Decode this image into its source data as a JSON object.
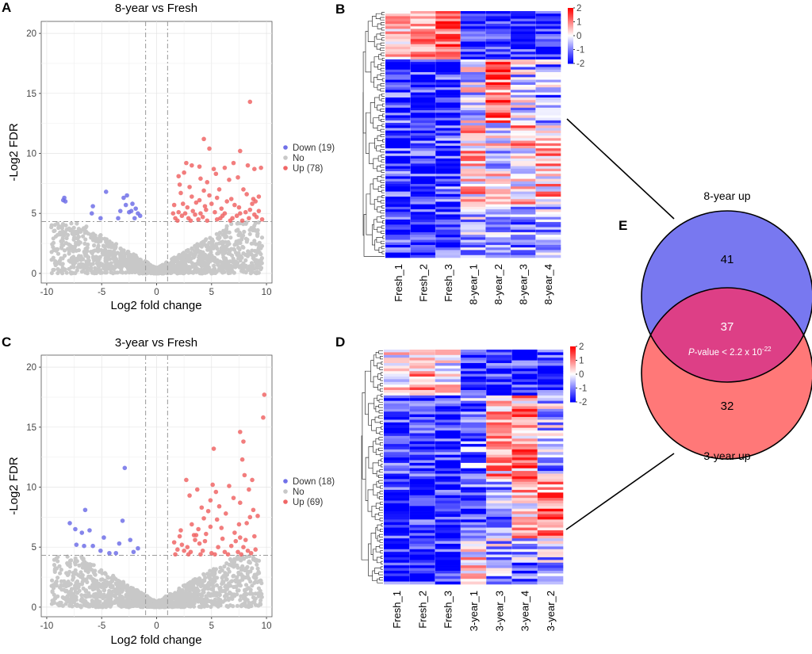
{
  "panel_letters": {
    "a": "A",
    "b": "B",
    "c": "C",
    "d": "D",
    "e": "E"
  },
  "chart_data": [
    {
      "panel": "A",
      "type": "scatter",
      "title": "8-year vs Fresh",
      "xlabel": "Log2 fold change",
      "ylabel": "-Log2 FDR",
      "xlim": [
        -10.5,
        10.5
      ],
      "ylim": [
        -0.8,
        21
      ],
      "xticks": [
        -10,
        -5,
        0,
        5,
        10
      ],
      "yticks": [
        0,
        5,
        10,
        15,
        20
      ],
      "grid": true,
      "fc_cutoff": [
        -1,
        1
      ],
      "fdr_cutoff": 4.32,
      "legend_position": "right",
      "legend": [
        {
          "label": "Down (19)",
          "color": "#7070e8"
        },
        {
          "label": "No",
          "color": "#c8c8c8"
        },
        {
          "label": "Up (78)",
          "color": "#f06666"
        }
      ],
      "series": [
        {
          "name": "Down",
          "color": "#7070e8",
          "points": [
            [
              -8.4,
              6.3
            ],
            [
              -8.5,
              6.1
            ],
            [
              -8.3,
              6.0
            ],
            [
              -4.6,
              6.8
            ],
            [
              -5.8,
              5.6
            ],
            [
              -5.9,
              5.0
            ],
            [
              -3.0,
              6.3
            ],
            [
              -2.7,
              6.5
            ],
            [
              -2.5,
              5.1
            ],
            [
              -2.3,
              5.2
            ],
            [
              -3.3,
              5.2
            ],
            [
              -2.2,
              5.8
            ],
            [
              -1.7,
              5.0
            ],
            [
              -3.5,
              4.6
            ],
            [
              -2.0,
              4.6
            ],
            [
              -1.5,
              4.8
            ],
            [
              -5.1,
              4.6
            ],
            [
              -2.8,
              5.7
            ],
            [
              -1.9,
              5.4
            ]
          ]
        },
        {
          "name": "Up",
          "color": "#f06666",
          "points": [
            [
              8.5,
              14.3
            ],
            [
              4.3,
              11.2
            ],
            [
              4.8,
              10.4
            ],
            [
              7.6,
              10.2
            ],
            [
              2.7,
              9.2
            ],
            [
              3.2,
              9.0
            ],
            [
              3.9,
              8.9
            ],
            [
              5.2,
              8.7
            ],
            [
              6.2,
              8.8
            ],
            [
              7.0,
              9.2
            ],
            [
              8.9,
              8.7
            ],
            [
              9.5,
              8.8
            ],
            [
              2.0,
              8.1
            ],
            [
              2.5,
              8.4
            ],
            [
              4.0,
              7.9
            ],
            [
              5.4,
              8.3
            ],
            [
              7.4,
              8.0
            ],
            [
              8.3,
              9.0
            ],
            [
              3.0,
              7.2
            ],
            [
              4.3,
              6.9
            ],
            [
              5.7,
              7.0
            ],
            [
              6.6,
              7.8
            ],
            [
              7.9,
              7.0
            ],
            [
              2.2,
              6.7
            ],
            [
              3.2,
              6.4
            ],
            [
              4.8,
              6.5
            ],
            [
              8.2,
              6.6
            ],
            [
              9.3,
              6.4
            ],
            [
              2.4,
              5.8
            ],
            [
              3.6,
              5.9
            ],
            [
              5.0,
              5.8
            ],
            [
              6.4,
              6.0
            ],
            [
              7.1,
              5.7
            ],
            [
              8.7,
              5.8
            ],
            [
              9.0,
              6.0
            ],
            [
              1.5,
              5.0
            ],
            [
              2.0,
              5.1
            ],
            [
              2.6,
              5.0
            ],
            [
              3.3,
              5.2
            ],
            [
              4.0,
              5.0
            ],
            [
              4.5,
              5.3
            ],
            [
              5.3,
              5.1
            ],
            [
              6.2,
              5.0
            ],
            [
              7.6,
              5.0
            ],
            [
              8.1,
              5.1
            ],
            [
              9.3,
              5.2
            ],
            [
              1.7,
              4.6
            ],
            [
              2.9,
              4.6
            ],
            [
              3.8,
              4.5
            ],
            [
              5.8,
              4.6
            ],
            [
              6.9,
              4.6
            ],
            [
              8.4,
              4.6
            ],
            [
              9.1,
              4.7
            ],
            [
              1.9,
              4.4
            ],
            [
              3.1,
              4.4
            ],
            [
              4.6,
              4.4
            ],
            [
              5.5,
              4.5
            ],
            [
              6.7,
              4.4
            ],
            [
              7.8,
              4.4
            ],
            [
              9.6,
              4.5
            ],
            [
              2.3,
              4.8
            ],
            [
              3.5,
              4.9
            ],
            [
              4.2,
              4.7
            ],
            [
              6.0,
              4.8
            ],
            [
              7.3,
              4.8
            ],
            [
              8.9,
              4.9
            ],
            [
              2.8,
              5.5
            ],
            [
              4.4,
              5.6
            ],
            [
              5.9,
              5.4
            ],
            [
              7.5,
              5.5
            ],
            [
              8.5,
              5.3
            ],
            [
              1.6,
              5.7
            ],
            [
              3.9,
              6.1
            ],
            [
              5.5,
              6.3
            ],
            [
              6.8,
              6.2
            ],
            [
              8.8,
              6.2
            ],
            [
              2.1,
              7.4
            ],
            [
              4.6,
              7.6
            ]
          ]
        }
      ]
    },
    {
      "panel": "C",
      "type": "scatter",
      "title": "3-year vs Fresh",
      "xlabel": "Log2 fold change",
      "ylabel": "-Log2 FDR",
      "xlim": [
        -10.5,
        10.5
      ],
      "ylim": [
        -0.8,
        21
      ],
      "xticks": [
        -10,
        -5,
        0,
        5,
        10
      ],
      "yticks": [
        0,
        5,
        10,
        15,
        20
      ],
      "grid": true,
      "fc_cutoff": [
        -1,
        1
      ],
      "fdr_cutoff": 4.32,
      "legend_position": "right",
      "legend": [
        {
          "label": "Down (18)",
          "color": "#7070e8"
        },
        {
          "label": "No",
          "color": "#c8c8c8"
        },
        {
          "label": "Up (69)",
          "color": "#f06666"
        }
      ],
      "series": [
        {
          "name": "Down",
          "color": "#7070e8",
          "points": [
            [
              -2.9,
              11.6
            ],
            [
              -6.5,
              8.1
            ],
            [
              -7.9,
              7.0
            ],
            [
              -7.4,
              6.5
            ],
            [
              -7.3,
              5.2
            ],
            [
              -6.8,
              6.2
            ],
            [
              -6.1,
              6.4
            ],
            [
              -5.8,
              5.1
            ],
            [
              -6.6,
              5.1
            ],
            [
              -5.1,
              4.7
            ],
            [
              -4.3,
              4.5
            ],
            [
              -3.7,
              4.5
            ],
            [
              -3.1,
              7.2
            ],
            [
              -2.4,
              5.6
            ],
            [
              -1.7,
              4.9
            ],
            [
              -2.1,
              4.6
            ],
            [
              -4.8,
              5.8
            ],
            [
              -3.4,
              5.3
            ]
          ]
        },
        {
          "name": "Up",
          "color": "#f06666",
          "points": [
            [
              9.8,
              17.7
            ],
            [
              9.7,
              15.8
            ],
            [
              7.6,
              14.6
            ],
            [
              7.9,
              13.8
            ],
            [
              5.2,
              13.2
            ],
            [
              7.8,
              12.3
            ],
            [
              2.7,
              10.6
            ],
            [
              8.7,
              10.6
            ],
            [
              5.1,
              10.2
            ],
            [
              8.4,
              9.8
            ],
            [
              3.0,
              9.3
            ],
            [
              4.9,
              8.9
            ],
            [
              5.7,
              8.4
            ],
            [
              7.6,
              8.7
            ],
            [
              4.7,
              8.0
            ],
            [
              8.8,
              8.1
            ],
            [
              4.3,
              7.4
            ],
            [
              5.5,
              7.3
            ],
            [
              8.5,
              7.5
            ],
            [
              9.2,
              7.6
            ],
            [
              3.2,
              6.9
            ],
            [
              4.9,
              6.7
            ],
            [
              7.1,
              6.2
            ],
            [
              2.1,
              5.9
            ],
            [
              3.4,
              6.0
            ],
            [
              3.6,
              6.0
            ],
            [
              4.5,
              6.1
            ],
            [
              7.6,
              5.8
            ],
            [
              8.1,
              5.6
            ],
            [
              2.3,
              5.2
            ],
            [
              2.8,
              5.0
            ],
            [
              3.9,
              5.3
            ],
            [
              5.6,
              5.0
            ],
            [
              6.8,
              5.1
            ],
            [
              7.9,
              5.0
            ],
            [
              1.6,
              5.4
            ],
            [
              1.9,
              4.8
            ],
            [
              2.5,
              4.7
            ],
            [
              3.1,
              4.6
            ],
            [
              4.2,
              4.7
            ],
            [
              5.0,
              4.5
            ],
            [
              6.2,
              4.6
            ],
            [
              7.4,
              4.6
            ],
            [
              8.3,
              4.7
            ],
            [
              9.0,
              4.8
            ],
            [
              1.7,
              4.4
            ],
            [
              2.9,
              4.4
            ],
            [
              4.0,
              4.4
            ],
            [
              5.3,
              4.4
            ],
            [
              6.5,
              4.4
            ],
            [
              7.7,
              4.4
            ],
            [
              8.6,
              4.5
            ],
            [
              3.5,
              5.6
            ],
            [
              4.4,
              5.5
            ],
            [
              6.0,
              5.7
            ],
            [
              7.2,
              5.5
            ],
            [
              8.9,
              5.9
            ],
            [
              2.2,
              6.4
            ],
            [
              3.8,
              6.5
            ],
            [
              5.9,
              6.6
            ],
            [
              7.5,
              6.9
            ],
            [
              8.2,
              7.0
            ],
            [
              4.1,
              8.3
            ],
            [
              6.3,
              7.8
            ],
            [
              7.0,
              9.1
            ],
            [
              5.4,
              9.6
            ],
            [
              3.7,
              9.8
            ],
            [
              6.6,
              10.1
            ],
            [
              8.0,
              11.0
            ]
          ]
        }
      ]
    },
    {
      "panel": "B",
      "type": "heatmap",
      "columns": [
        "Fresh_1",
        "Fresh_2",
        "Fresh_3",
        "8-year_1",
        "8-year_2",
        "8-year_3",
        "8-year_4"
      ],
      "rows": 97,
      "colorbar": {
        "min": -2,
        "max": 2,
        "ticks": [
          "2",
          "1",
          "0",
          "-1",
          "-2"
        ],
        "low": "#0000ff",
        "mid": "#ffffff",
        "high": "#ff0000"
      }
    },
    {
      "panel": "D",
      "type": "heatmap",
      "columns": [
        "Fresh_1",
        "Fresh_2",
        "Fresh_3",
        "3-year_1",
        "3-year_3",
        "3-year_4",
        "3-year_2"
      ],
      "rows": 87,
      "colorbar": {
        "min": -2,
        "max": 2,
        "ticks": [
          "2",
          "1",
          "0",
          "-1",
          "-2"
        ],
        "low": "#0000ff",
        "mid": "#ffffff",
        "high": "#ff0000"
      }
    },
    {
      "panel": "E",
      "type": "venn",
      "sets": [
        {
          "label": "8-year up",
          "only": "41",
          "color": "#7878f0"
        },
        {
          "label": "3-year up",
          "only": "32",
          "color": "#ff7878"
        }
      ],
      "overlap": "37",
      "overlap_color": "#dd3f86",
      "pvalue_prefix": "P",
      "pvalue_text": "-value < 2.2 x 10",
      "pvalue_exp": "-22"
    }
  ]
}
